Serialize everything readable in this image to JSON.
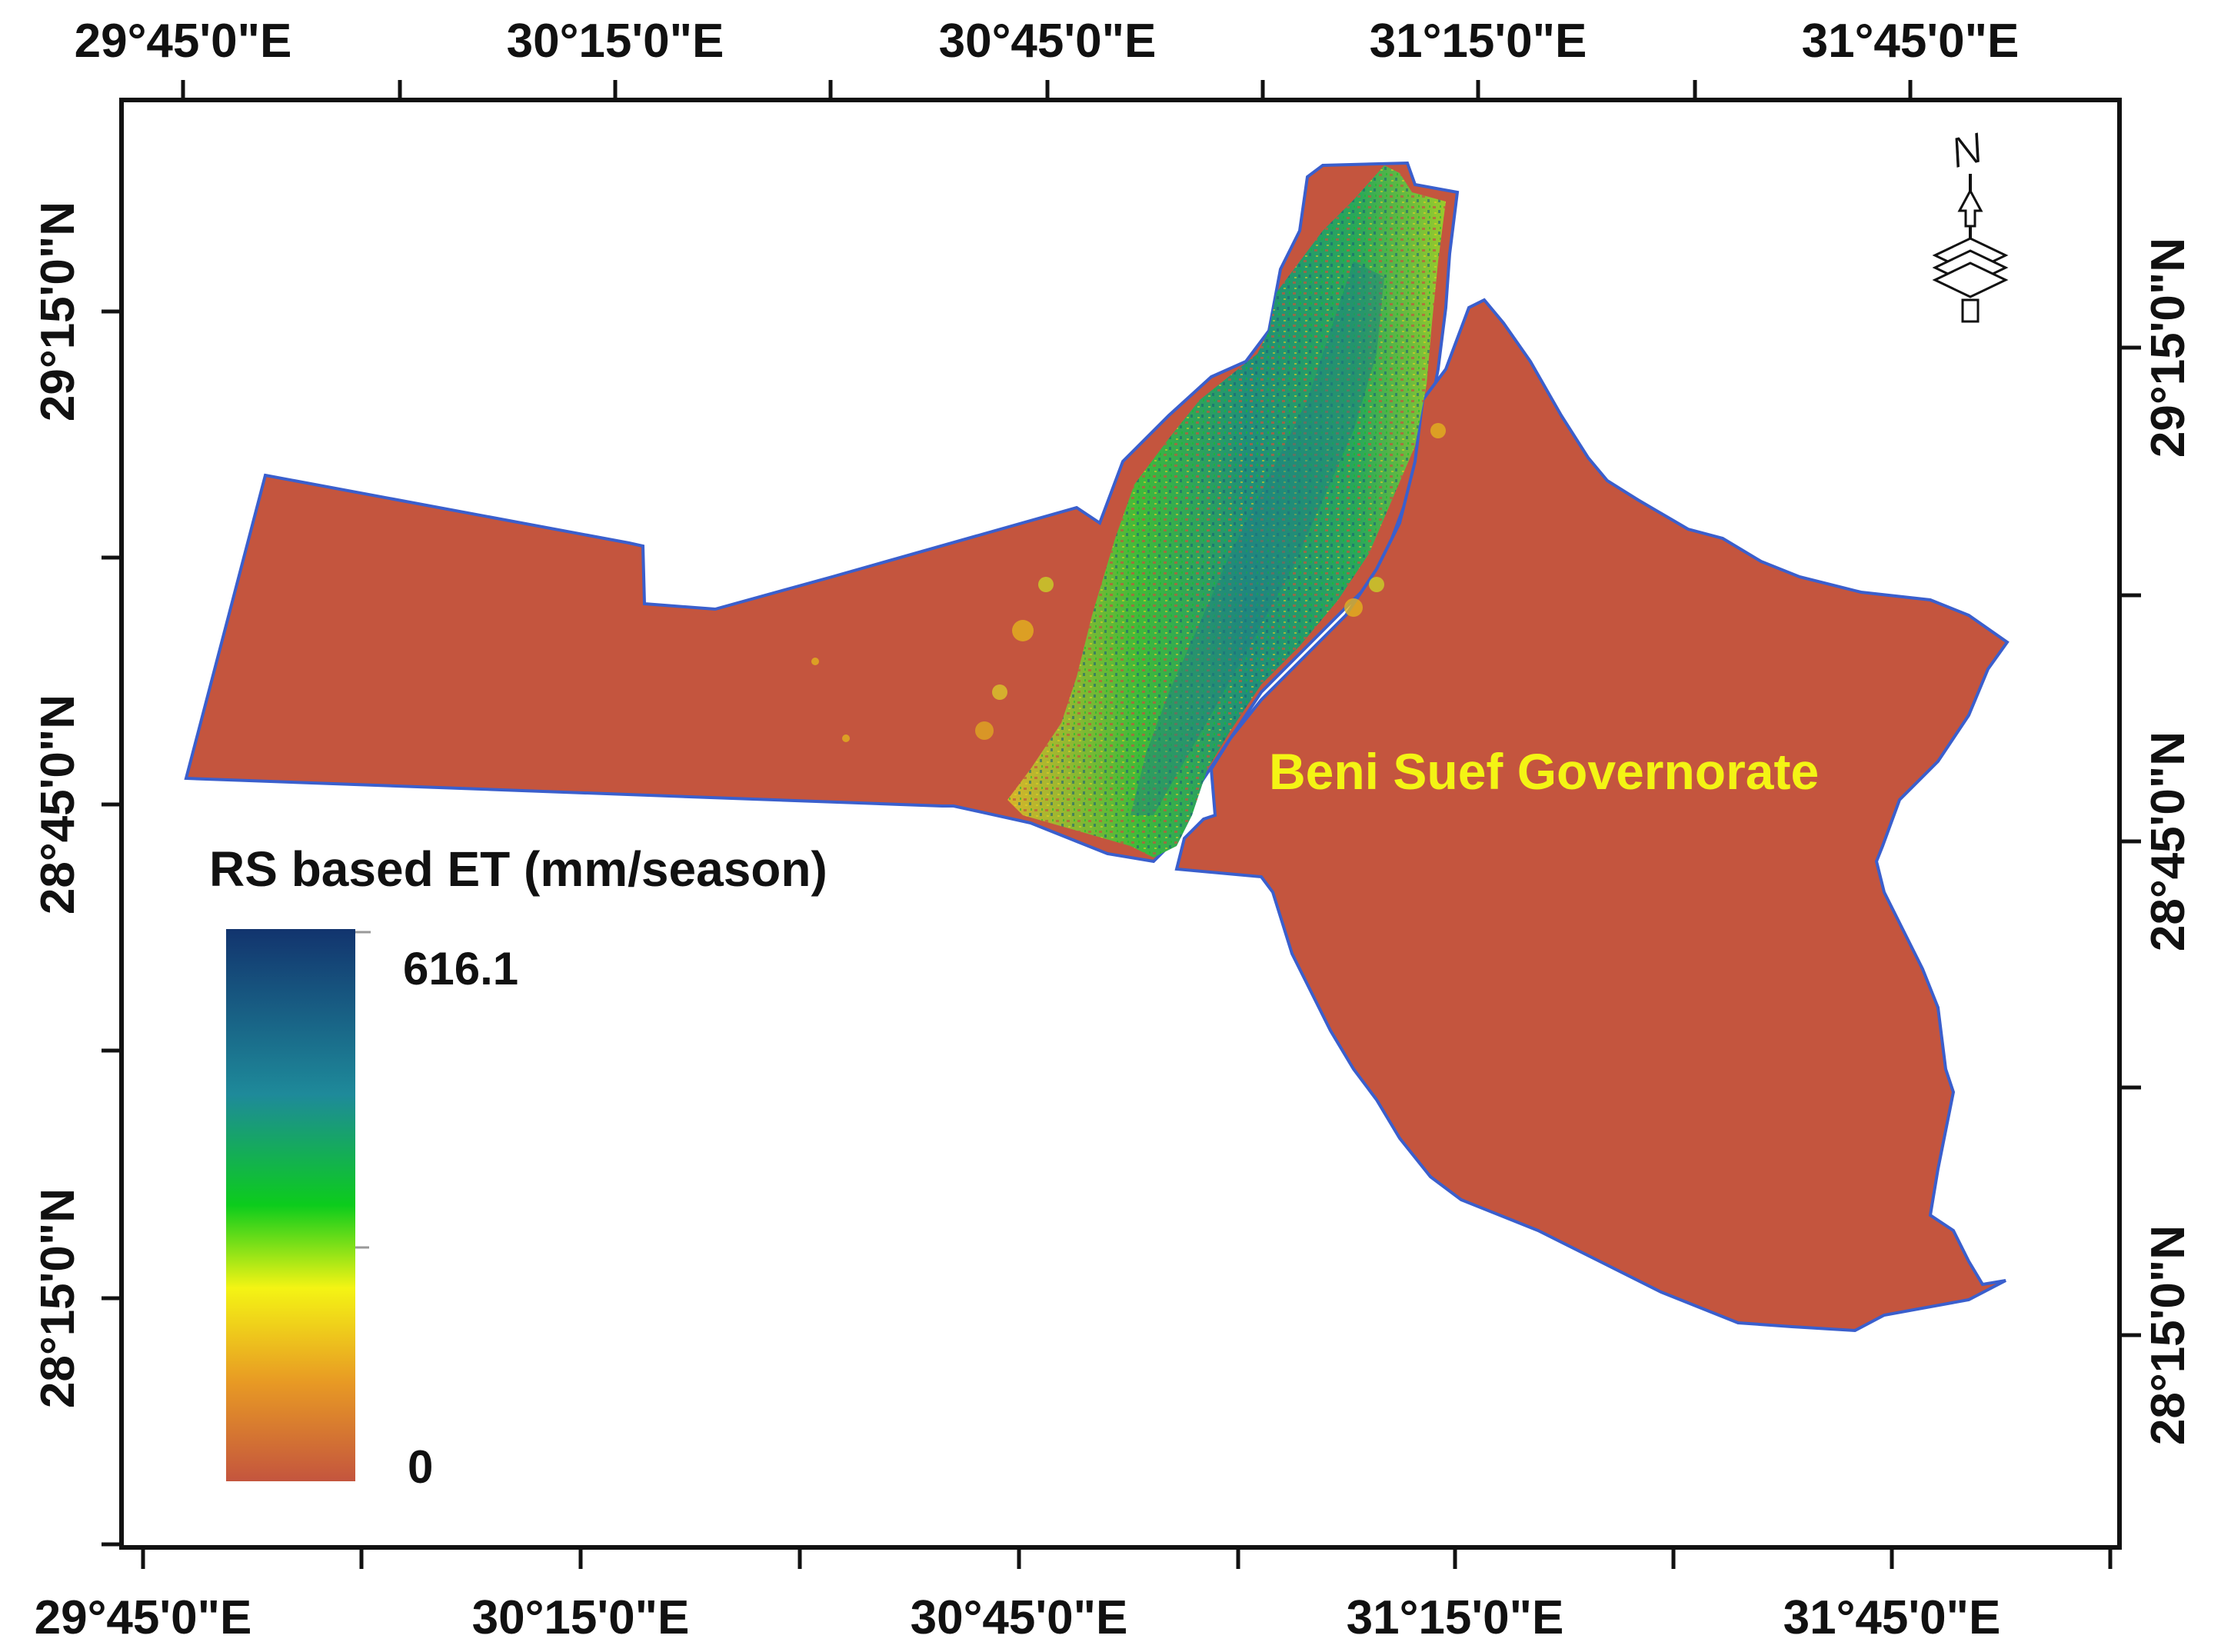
{
  "map": {
    "top_axis_labels": [
      "29°45'0\"E",
      "30°15'0\"E",
      "30°45'0\"E",
      "31°15'0\"E",
      "31°45'0\"E"
    ],
    "bottom_axis_labels": [
      "29°45'0\"E",
      "30°15'0\"E",
      "30°45'0\"E",
      "31°15'0\"E",
      "31°45'0\"E"
    ],
    "left_axis_labels": [
      "29°15'0\"N",
      "28°45'0\"N",
      "28°15'0\"N"
    ],
    "right_axis_labels": [
      "29°15'0\"N",
      "28°45'0\"N",
      "28°15'0\"N"
    ],
    "region_label": "Beni Suef Governorate",
    "north_arrow_letter": "N",
    "legend": {
      "title": "RS based ET (mm/season)",
      "max_label": "616.1",
      "min_label": "0",
      "gradient_colors": [
        "#12346e",
        "#1e8a9a",
        "#0ccc1c",
        "#f4f414",
        "#e89a24",
        "#c4553e"
      ]
    },
    "colors": {
      "background_land": "#c4553e",
      "boundary": "#3a5fcd",
      "label": "#f4f414",
      "frame": "#111111"
    }
  }
}
